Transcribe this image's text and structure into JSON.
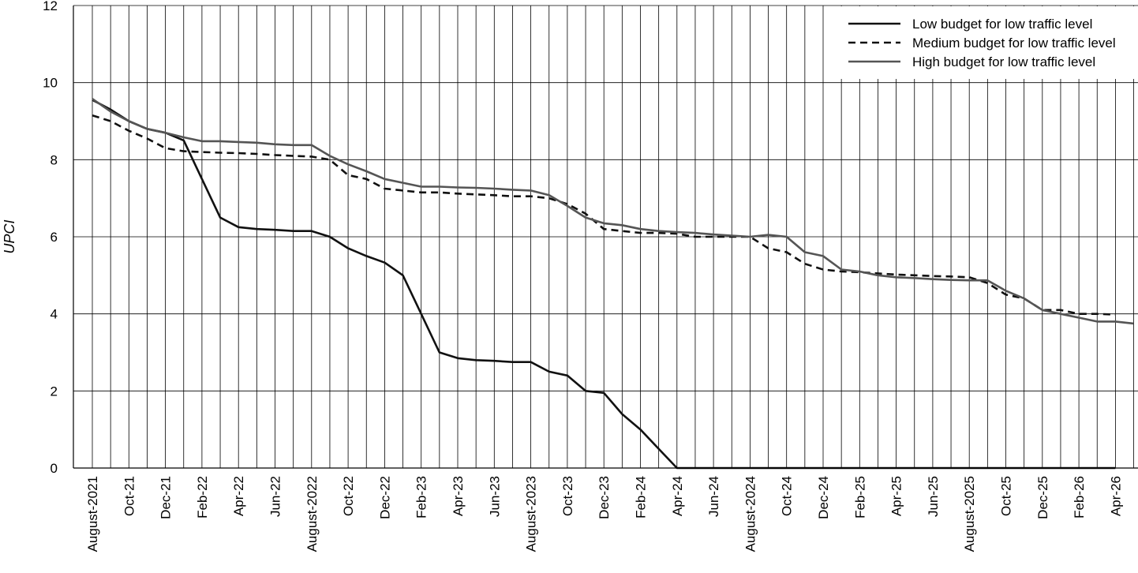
{
  "chart_data": {
    "type": "line",
    "title": "",
    "xlabel": "",
    "ylabel": "UPCI",
    "ylim": [
      0,
      12
    ],
    "yticks": [
      0,
      2,
      4,
      6,
      8,
      10,
      12
    ],
    "grid": true,
    "legend_position": "top-right",
    "categories": [
      "August-2021",
      "Oct-21",
      "Dec-21",
      "Feb-22",
      "Apr-22",
      "Jun-22",
      "August-2022",
      "Oct-22",
      "Dec-22",
      "Feb-23",
      "Apr-23",
      "Jun-23",
      "August-2023",
      "Oct-23",
      "Dec-23",
      "Feb-24",
      "Apr-24",
      "Jun-24",
      "August-2024",
      "Oct-24",
      "Dec-24",
      "Feb-25",
      "Apr-25",
      "Jun-25",
      "August-2025",
      "Oct-25",
      "Dec-25",
      "Feb-26",
      "Apr-26"
    ],
    "series": [
      {
        "name": "Low budget for low traffic level",
        "color": "#111111",
        "dash": "solid",
        "points": [
          [
            0,
            9.55
          ],
          [
            0.5,
            9.3
          ],
          [
            1,
            9.0
          ],
          [
            1.5,
            8.8
          ],
          [
            2,
            8.7
          ],
          [
            2.5,
            8.5
          ],
          [
            3,
            7.5
          ],
          [
            3.5,
            6.5
          ],
          [
            4,
            6.25
          ],
          [
            4.5,
            6.2
          ],
          [
            5,
            6.18
          ],
          [
            5.5,
            6.15
          ],
          [
            6,
            6.15
          ],
          [
            6.5,
            6.0
          ],
          [
            7,
            5.7
          ],
          [
            7.5,
            5.5
          ],
          [
            8,
            5.33
          ],
          [
            8.5,
            5.0
          ],
          [
            9,
            4.0
          ],
          [
            9.5,
            3.0
          ],
          [
            10,
            2.85
          ],
          [
            10.5,
            2.8
          ],
          [
            11,
            2.78
          ],
          [
            11.5,
            2.75
          ],
          [
            12,
            2.75
          ],
          [
            12.5,
            2.5
          ],
          [
            13,
            2.4
          ],
          [
            13.5,
            2.0
          ],
          [
            14,
            1.95
          ],
          [
            14.5,
            1.4
          ],
          [
            15,
            1.0
          ],
          [
            15.5,
            0.5
          ],
          [
            16,
            0.0
          ],
          [
            16.5,
            0.0
          ],
          [
            28,
            0.0
          ]
        ]
      },
      {
        "name": "Medium budget for low traffic level",
        "color": "#111111",
        "dash": "dashed",
        "points": [
          [
            0,
            9.15
          ],
          [
            0.5,
            9.0
          ],
          [
            1,
            8.75
          ],
          [
            1.5,
            8.55
          ],
          [
            2,
            8.3
          ],
          [
            2.5,
            8.22
          ],
          [
            3,
            8.2
          ],
          [
            3.5,
            8.18
          ],
          [
            4,
            8.17
          ],
          [
            4.5,
            8.15
          ],
          [
            5,
            8.12
          ],
          [
            5.5,
            8.1
          ],
          [
            6,
            8.08
          ],
          [
            6.5,
            8.0
          ],
          [
            7,
            7.6
          ],
          [
            7.5,
            7.5
          ],
          [
            8,
            7.25
          ],
          [
            8.5,
            7.2
          ],
          [
            9,
            7.15
          ],
          [
            9.5,
            7.15
          ],
          [
            10,
            7.12
          ],
          [
            10.5,
            7.1
          ],
          [
            11,
            7.08
          ],
          [
            11.5,
            7.05
          ],
          [
            12,
            7.05
          ],
          [
            12.5,
            7.0
          ],
          [
            13,
            6.85
          ],
          [
            13.5,
            6.6
          ],
          [
            14,
            6.2
          ],
          [
            14.5,
            6.15
          ],
          [
            15,
            6.1
          ],
          [
            15.5,
            6.1
          ],
          [
            16,
            6.08
          ],
          [
            16.5,
            6.0
          ],
          [
            17,
            6.0
          ],
          [
            17.5,
            6.0
          ],
          [
            18,
            6.0
          ],
          [
            18.5,
            5.7
          ],
          [
            19,
            5.6
          ],
          [
            19.5,
            5.3
          ],
          [
            20,
            5.15
          ],
          [
            20.5,
            5.1
          ],
          [
            21,
            5.08
          ],
          [
            21.5,
            5.05
          ],
          [
            22,
            5.02
          ],
          [
            22.5,
            5.0
          ],
          [
            23,
            4.98
          ],
          [
            23.5,
            4.97
          ],
          [
            24,
            4.95
          ],
          [
            24.5,
            4.8
          ],
          [
            25,
            4.5
          ],
          [
            25.5,
            4.4
          ],
          [
            26,
            4.1
          ],
          [
            26.5,
            4.1
          ],
          [
            27,
            4.0
          ],
          [
            27.5,
            4.0
          ],
          [
            28,
            3.98
          ]
        ]
      },
      {
        "name": "High budget for low traffic level",
        "color": "#555555",
        "dash": "solid",
        "points": [
          [
            0,
            9.58
          ],
          [
            0.5,
            9.25
          ],
          [
            1,
            9.0
          ],
          [
            1.5,
            8.8
          ],
          [
            2,
            8.7
          ],
          [
            2.5,
            8.58
          ],
          [
            3,
            8.48
          ],
          [
            3.5,
            8.48
          ],
          [
            4,
            8.46
          ],
          [
            4.5,
            8.44
          ],
          [
            5,
            8.4
          ],
          [
            5.5,
            8.38
          ],
          [
            6,
            8.38
          ],
          [
            6.5,
            8.1
          ],
          [
            7,
            7.88
          ],
          [
            7.5,
            7.7
          ],
          [
            8,
            7.5
          ],
          [
            8.5,
            7.4
          ],
          [
            9,
            7.3
          ],
          [
            9.5,
            7.3
          ],
          [
            10,
            7.28
          ],
          [
            10.5,
            7.27
          ],
          [
            11,
            7.25
          ],
          [
            11.5,
            7.22
          ],
          [
            12,
            7.2
          ],
          [
            12.5,
            7.08
          ],
          [
            13,
            6.8
          ],
          [
            13.5,
            6.5
          ],
          [
            14,
            6.35
          ],
          [
            14.5,
            6.3
          ],
          [
            15,
            6.2
          ],
          [
            15.5,
            6.15
          ],
          [
            16,
            6.12
          ],
          [
            16.5,
            6.1
          ],
          [
            17,
            6.06
          ],
          [
            18,
            6.0
          ],
          [
            18.5,
            6.05
          ],
          [
            19,
            6.0
          ],
          [
            19.5,
            5.6
          ],
          [
            20,
            5.5
          ],
          [
            20.5,
            5.15
          ],
          [
            21,
            5.1
          ],
          [
            21.5,
            5.0
          ],
          [
            22,
            4.95
          ],
          [
            22.5,
            4.93
          ],
          [
            23,
            4.9
          ],
          [
            23.5,
            4.88
          ],
          [
            24,
            4.87
          ],
          [
            24.5,
            4.87
          ],
          [
            25,
            4.6
          ],
          [
            25.5,
            4.4
          ],
          [
            26,
            4.1
          ],
          [
            26.5,
            4.0
          ],
          [
            27,
            3.9
          ],
          [
            27.5,
            3.8
          ],
          [
            28,
            3.8
          ],
          [
            28.5,
            3.75
          ]
        ]
      }
    ]
  }
}
